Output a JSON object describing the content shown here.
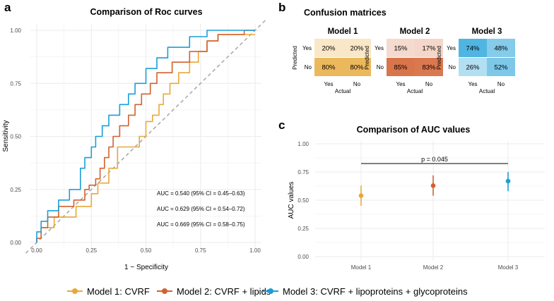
{
  "panels": {
    "a": "a",
    "b": "b",
    "c": "c"
  },
  "colors": {
    "model1": "#e8a838",
    "model2": "#d3602f",
    "model3": "#1a9ed8",
    "diagonal": "#a6a6a6",
    "grid": "#ebebeb",
    "bracket": "#000000"
  },
  "chart_data": [
    {
      "type": "line",
      "panel": "a",
      "title": "Comparison of Roc curves",
      "xlabel": "1 − Specificity",
      "ylabel": "Sensitivity",
      "xlim": [
        0,
        1
      ],
      "ylim": [
        0,
        1
      ],
      "xticks": [
        "0.00",
        "0.25",
        "0.50",
        "0.75",
        "1.00"
      ],
      "yticks": [
        "0.00",
        "0.25",
        "0.50",
        "0.75",
        "1.00"
      ],
      "reference_line": "diagonal",
      "series": [
        {
          "name": "Model 1: CVRF",
          "auc_label": "AUC = 0.540 (95% CI = 0.45–0.63)",
          "x": [
            0,
            0,
            0.02,
            0.02,
            0.08,
            0.08,
            0.18,
            0.18,
            0.25,
            0.25,
            0.28,
            0.28,
            0.33,
            0.33,
            0.37,
            0.37,
            0.4,
            0.4,
            0.47,
            0.47,
            0.5,
            0.5,
            0.53,
            0.53,
            0.56,
            0.56,
            0.58,
            0.58,
            0.61,
            0.61,
            0.65,
            0.65,
            0.7,
            0.7,
            0.74,
            0.74,
            0.78,
            0.78,
            0.83,
            0.83,
            1.0
          ],
          "y": [
            0,
            0.02,
            0.02,
            0.07,
            0.07,
            0.12,
            0.12,
            0.17,
            0.17,
            0.23,
            0.23,
            0.28,
            0.28,
            0.35,
            0.35,
            0.45,
            0.45,
            0.45,
            0.45,
            0.5,
            0.5,
            0.57,
            0.57,
            0.6,
            0.6,
            0.65,
            0.65,
            0.7,
            0.7,
            0.75,
            0.75,
            0.8,
            0.8,
            0.85,
            0.85,
            0.9,
            0.9,
            0.95,
            0.95,
            0.98,
            0.98
          ]
        },
        {
          "name": "Model 2: CVRF + lipids",
          "auc_label": "AUC = 0.629 (95% CI = 0.54–0.72)",
          "x": [
            0,
            0,
            0.02,
            0.02,
            0.05,
            0.05,
            0.1,
            0.1,
            0.17,
            0.17,
            0.22,
            0.22,
            0.24,
            0.24,
            0.27,
            0.27,
            0.29,
            0.29,
            0.31,
            0.31,
            0.33,
            0.33,
            0.35,
            0.35,
            0.38,
            0.38,
            0.42,
            0.42,
            0.45,
            0.45,
            0.48,
            0.48,
            0.52,
            0.52,
            0.55,
            0.55,
            0.62,
            0.62,
            0.7,
            0.7,
            0.78,
            0.78,
            0.83,
            0.83,
            0.95,
            0.95,
            1.0
          ],
          "y": [
            0,
            0.02,
            0.02,
            0.07,
            0.07,
            0.12,
            0.12,
            0.17,
            0.17,
            0.2,
            0.2,
            0.25,
            0.25,
            0.27,
            0.27,
            0.3,
            0.3,
            0.35,
            0.35,
            0.4,
            0.4,
            0.45,
            0.45,
            0.5,
            0.5,
            0.55,
            0.55,
            0.6,
            0.6,
            0.65,
            0.65,
            0.7,
            0.7,
            0.75,
            0.75,
            0.8,
            0.8,
            0.85,
            0.85,
            0.9,
            0.9,
            0.95,
            0.95,
            0.98,
            0.98,
            1.0,
            1.0
          ]
        },
        {
          "name": "Model 3: CVRF + lipoproteins + glycoproteins",
          "auc_label": "AUC = 0.669 (95% CI = 0.58–0.75)",
          "x": [
            0,
            0,
            0.02,
            0.02,
            0.05,
            0.05,
            0.1,
            0.1,
            0.15,
            0.15,
            0.2,
            0.2,
            0.22,
            0.22,
            0.25,
            0.25,
            0.27,
            0.27,
            0.3,
            0.3,
            0.33,
            0.33,
            0.38,
            0.38,
            0.42,
            0.42,
            0.45,
            0.45,
            0.5,
            0.5,
            0.55,
            0.55,
            0.6,
            0.6,
            0.7,
            0.7,
            0.78,
            0.78,
            0.92,
            0.92,
            1.0
          ],
          "y": [
            0,
            0.05,
            0.05,
            0.1,
            0.1,
            0.15,
            0.15,
            0.2,
            0.2,
            0.25,
            0.25,
            0.35,
            0.35,
            0.4,
            0.4,
            0.45,
            0.45,
            0.5,
            0.5,
            0.55,
            0.55,
            0.6,
            0.6,
            0.65,
            0.65,
            0.7,
            0.7,
            0.75,
            0.75,
            0.82,
            0.82,
            0.87,
            0.87,
            0.92,
            0.92,
            0.97,
            0.97,
            1.0,
            1.0,
            1.0,
            1.0
          ]
        }
      ]
    },
    {
      "type": "heatmap",
      "panel": "b",
      "title": "Confusion matrices",
      "xlabel": "Actual",
      "ylabel": "Predicted",
      "row_labels": [
        "Yes",
        "No"
      ],
      "col_labels": [
        "Yes",
        "No"
      ],
      "matrices": [
        {
          "name": "Model 1",
          "color": "#e8a838",
          "cells": [
            [
              20,
              20
            ],
            [
              80,
              80
            ]
          ],
          "labels": [
            [
              "20%",
              "20%"
            ],
            [
              "80%",
              "80%"
            ]
          ]
        },
        {
          "name": "Model 2",
          "color": "#d3602f",
          "cells": [
            [
              15,
              17
            ],
            [
              85,
              83
            ]
          ],
          "labels": [
            [
              "15%",
              "17%"
            ],
            [
              "85%",
              "83%"
            ]
          ]
        },
        {
          "name": "Model 3",
          "color": "#1a9ed8",
          "cells": [
            [
              74,
              48
            ],
            [
              26,
              52
            ]
          ],
          "labels": [
            [
              "74%",
              "48%"
            ],
            [
              "26%",
              "52%"
            ]
          ]
        }
      ]
    },
    {
      "type": "scatter",
      "panel": "c",
      "title": "Comparison of AUC values",
      "xlabel": "",
      "ylabel": "AUC values",
      "ylim": [
        0,
        1
      ],
      "yticks": [
        "0.00",
        "0.25",
        "0.50",
        "0.75",
        "1.00"
      ],
      "categories": [
        "Model 1",
        "Model 2",
        "Model 3"
      ],
      "values": [
        0.54,
        0.629,
        0.669
      ],
      "ci_low": [
        0.45,
        0.54,
        0.58
      ],
      "ci_high": [
        0.63,
        0.72,
        0.75
      ],
      "annotation": {
        "text": "p = 0.045",
        "from": "Model 1",
        "to": "Model 3",
        "y": 0.825
      }
    }
  ],
  "legend": [
    {
      "label": "Model 1: CVRF",
      "color": "#e8a838"
    },
    {
      "label": "Model 2: CVRF + lipids",
      "color": "#d3602f"
    },
    {
      "label": "Model 3: CVRF + lipoproteins + glycoproteins",
      "color": "#1a9ed8"
    }
  ]
}
